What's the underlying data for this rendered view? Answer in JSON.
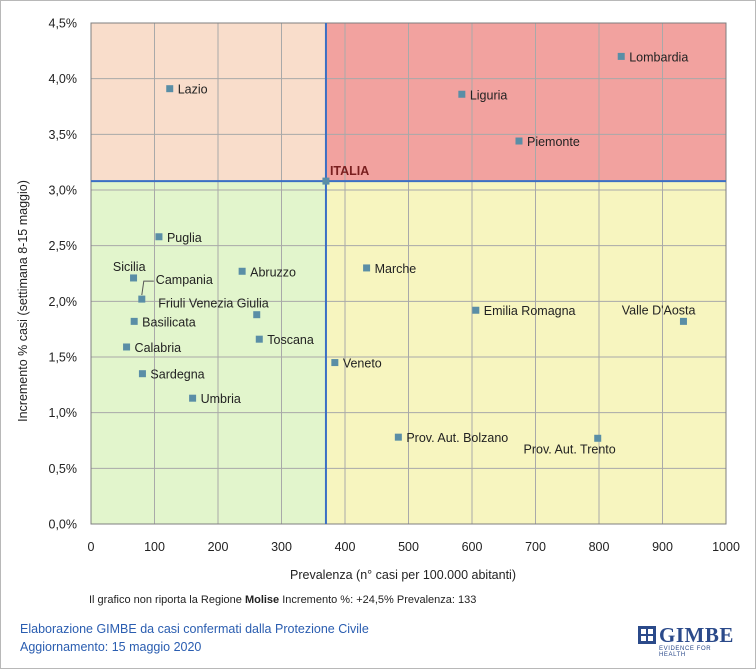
{
  "chart_data": {
    "type": "scatter",
    "xlabel": "Prevalenza  (n° casi per 100.000 abitanti)",
    "ylabel": "Incremento %  casi (settimana 8-15 maggio)",
    "xlim": [
      0,
      1000
    ],
    "ylim": [
      0,
      4.5
    ],
    "x_ticks": [
      0,
      100,
      200,
      300,
      400,
      500,
      600,
      700,
      800,
      900,
      1000
    ],
    "x_tick_labels": [
      "0",
      "100",
      "200",
      "300",
      "400",
      "500",
      "600",
      "700",
      "800",
      "900",
      "1000"
    ],
    "y_ticks": [
      0,
      0.5,
      1,
      1.5,
      2,
      2.5,
      3,
      3.5,
      4,
      4.5
    ],
    "y_tick_labels": [
      "0,0%",
      "0,5%",
      "1,0%",
      "1,5%",
      "2,0%",
      "2,5%",
      "3,0%",
      "3,5%",
      "4,0%",
      "4,5%"
    ],
    "grid": true,
    "reference": {
      "label": "ITALIA",
      "x": 370,
      "y": 3.08
    },
    "quadrant_colors": {
      "top_left": "#f9ddcb",
      "top_right": "#f2a29f",
      "bottom_left": "#e2f5cc",
      "bottom_right": "#f7f5bf"
    },
    "reference_line_color": "#3a6fc4",
    "marker_color": "#5a8ea6",
    "points": [
      {
        "label": "Lombardia",
        "x": 835,
        "y": 4.2,
        "label_side": "right"
      },
      {
        "label": "Lazio",
        "x": 124,
        "y": 3.91,
        "label_side": "right"
      },
      {
        "label": "Liguria",
        "x": 584,
        "y": 3.86,
        "label_side": "right"
      },
      {
        "label": "Piemonte",
        "x": 674,
        "y": 3.44,
        "label_side": "right"
      },
      {
        "label": "Puglia",
        "x": 107,
        "y": 2.58,
        "label_side": "right"
      },
      {
        "label": "Marche",
        "x": 434,
        "y": 2.3,
        "label_side": "right"
      },
      {
        "label": "Abruzzo",
        "x": 238,
        "y": 2.27,
        "label_side": "right"
      },
      {
        "label": "Sicilia",
        "x": 67,
        "y": 2.21,
        "label_side": "above-left"
      },
      {
        "label": "Campania",
        "x": 80,
        "y": 2.02,
        "label_side": "callout"
      },
      {
        "label": "Emilia Romagna",
        "x": 606,
        "y": 1.92,
        "label_side": "right"
      },
      {
        "label": "Valle D'Aosta",
        "x": 933,
        "y": 1.82,
        "label_side": "above-left"
      },
      {
        "label": "Friuli Venezia Giulia",
        "x": 261,
        "y": 1.88,
        "label_side": "above-left"
      },
      {
        "label": "Basilicata",
        "x": 68,
        "y": 1.82,
        "label_side": "right"
      },
      {
        "label": "Toscana",
        "x": 265,
        "y": 1.66,
        "label_side": "right"
      },
      {
        "label": "Calabria",
        "x": 56,
        "y": 1.59,
        "label_side": "right"
      },
      {
        "label": "Veneto",
        "x": 384,
        "y": 1.45,
        "label_side": "right"
      },
      {
        "label": "Sardegna",
        "x": 81,
        "y": 1.35,
        "label_side": "right"
      },
      {
        "label": "Umbria",
        "x": 160,
        "y": 1.13,
        "label_side": "right"
      },
      {
        "label": "Prov. Aut. Bolzano",
        "x": 484,
        "y": 0.78,
        "label_side": "right"
      },
      {
        "label": "Prov. Aut. Trento",
        "x": 798,
        "y": 0.77,
        "label_side": "below-left"
      }
    ]
  },
  "note": {
    "prefix": "Il grafico non riporta la Regione ",
    "region": "Molise",
    "suffix": " Incremento %: +24,5% Prevalenza: 133"
  },
  "footer": {
    "line1": "Elaborazione GIMBE da casi confermati dalla Protezione Civile",
    "line2": "Aggiornamento: 15 maggio 2020"
  },
  "logo": {
    "name": "GIMBE",
    "tagline": "EVIDENCE FOR HEALTH",
    "color": "#2b4a8a"
  }
}
